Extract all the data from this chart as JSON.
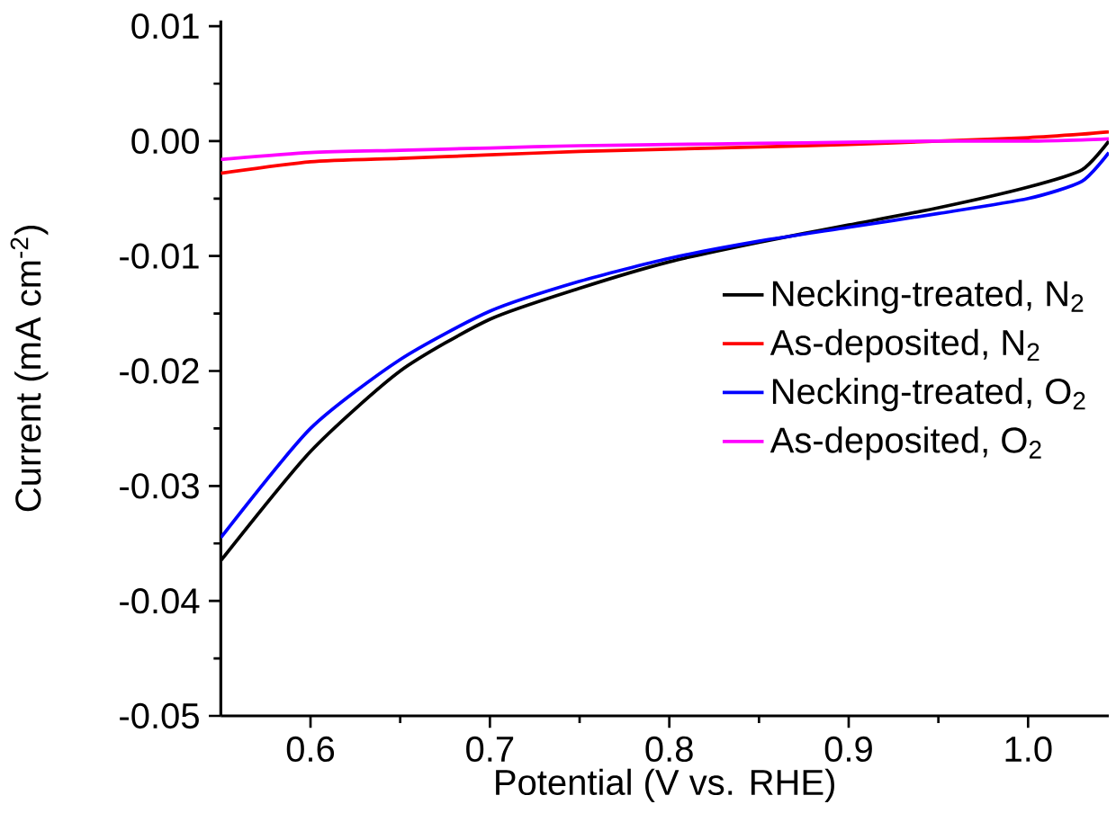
{
  "chart_data": {
    "type": "line",
    "xlabel": "Potential (V vs. RHE)",
    "ylabel": "Current (mA cm$^{-2}$)",
    "x": [
      0.55,
      0.6,
      0.65,
      0.7,
      0.75,
      0.8,
      0.85,
      0.9,
      0.95,
      1.0,
      1.03,
      1.045
    ],
    "series": [
      {
        "name": "Necking-treated, N$_{2}$",
        "color": "#000000",
        "values": [
          -0.0365,
          -0.027,
          -0.02,
          -0.0155,
          -0.0128,
          -0.0105,
          -0.0088,
          -0.0073,
          -0.0058,
          -0.004,
          -0.0025,
          0.0
        ]
      },
      {
        "name": "As-deposited, N$_{2}$",
        "color": "#ff0000",
        "values": [
          -0.0028,
          -0.0018,
          -0.0015,
          -0.0012,
          -0.0009,
          -0.0007,
          -0.0005,
          -0.0003,
          0.0,
          0.0003,
          0.0006,
          0.0008
        ]
      },
      {
        "name": "Necking-treated, O$_{2}$",
        "color": "#0000ff",
        "values": [
          -0.0345,
          -0.025,
          -0.019,
          -0.0148,
          -0.0122,
          -0.0102,
          -0.0087,
          -0.0075,
          -0.0063,
          -0.005,
          -0.0035,
          -0.001
        ]
      },
      {
        "name": "As-deposited, O$_{2}$",
        "color": "#ff00ff",
        "values": [
          -0.0016,
          -0.001,
          -0.0008,
          -0.0006,
          -0.0004,
          -0.0003,
          -0.0002,
          -0.0001,
          0.0,
          0.0,
          0.0001,
          0.0002
        ]
      }
    ],
    "xlim": [
      0.55,
      1.045
    ],
    "ylim": [
      -0.05,
      0.0105
    ],
    "xticks": [
      0.6,
      0.7,
      0.8,
      0.9,
      {
        "value": 1.0,
        "label": "1.0"
      }
    ],
    "yticks": [
      -0.05,
      -0.04,
      -0.03,
      -0.02,
      -0.01,
      {
        "value": 0.0,
        "label": "0.00"
      },
      0.01
    ],
    "legend": "right",
    "line_style": "solid",
    "marker": "none",
    "grid": false
  }
}
